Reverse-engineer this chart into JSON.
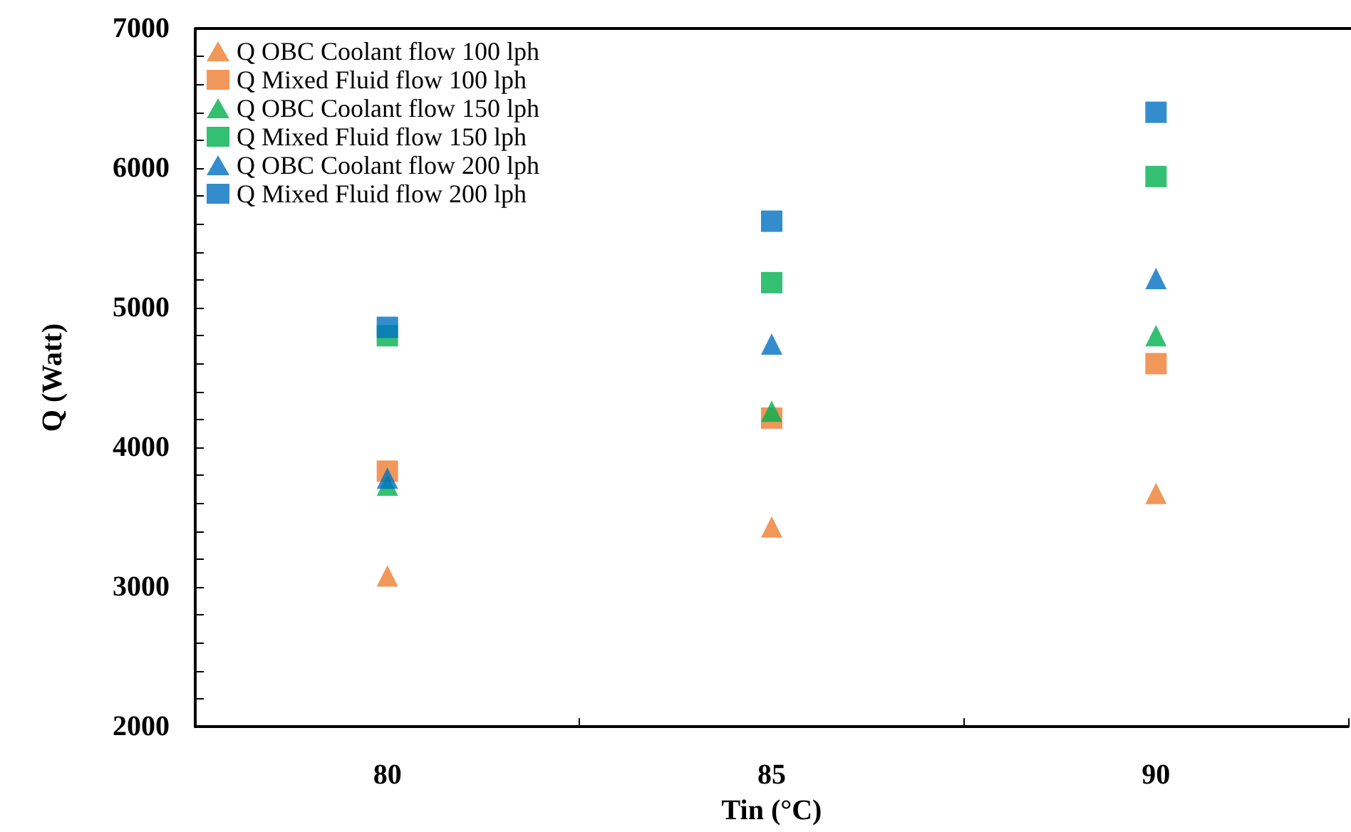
{
  "chart_data": {
    "type": "scatter",
    "xlabel": "Tin (°C)",
    "ylabel": "Q (Watt)",
    "categories": [
      "80",
      "85",
      "90"
    ],
    "ylim": [
      2000,
      7000
    ],
    "yticks": [
      2000,
      {
        "value": 2200,
        "label": null
      },
      {
        "value": 2400,
        "label": null
      },
      {
        "value": 2600,
        "label": null
      },
      {
        "value": 2800,
        "label": null
      },
      3000,
      {
        "value": 3200,
        "label": null
      },
      {
        "value": 3400,
        "label": null
      },
      {
        "value": 3600,
        "label": null
      },
      {
        "value": 3800,
        "label": null
      },
      4000,
      {
        "value": 4200,
        "label": null
      },
      {
        "value": 4400,
        "label": null
      },
      {
        "value": 4600,
        "label": null
      },
      {
        "value": 4800,
        "label": null
      },
      5000,
      {
        "value": 5200,
        "label": null
      },
      {
        "value": 5400,
        "label": null
      },
      {
        "value": 5600,
        "label": null
      },
      {
        "value": 5800,
        "label": null
      },
      6000,
      {
        "value": 6200,
        "label": null
      },
      {
        "value": 6400,
        "label": null
      },
      {
        "value": 6600,
        "label": null
      },
      {
        "value": 6800,
        "label": null
      },
      7000
    ],
    "legend": "top left",
    "grid": false,
    "series": [
      {
        "name": "Q OBC Coolant flow 100 lph",
        "color": "#ed7d31",
        "marker": "triangle",
        "values": [
          3080,
          3430,
          3670
        ]
      },
      {
        "name": "Q Mixed Fluid flow 100 lph",
        "color": "#ed7d31",
        "marker": "square",
        "values": [
          3830,
          4210,
          4600
        ]
      },
      {
        "name": "Q OBC Coolant flow 150 lph",
        "color": "#00b050",
        "marker": "triangle",
        "values": [
          3730,
          4260,
          4800
        ]
      },
      {
        "name": "Q Mixed Fluid flow 150 lph",
        "color": "#00b050",
        "marker": "square",
        "values": [
          4800,
          5180,
          5940
        ]
      },
      {
        "name": "Q OBC Coolant flow 200 lph",
        "color": "#0070c0",
        "marker": "triangle",
        "values": [
          3780,
          4740,
          5210
        ]
      },
      {
        "name": "Q Mixed Fluid flow 200 lph",
        "color": "#0070c0",
        "marker": "square",
        "values": [
          4860,
          5620,
          6400
        ]
      }
    ]
  }
}
